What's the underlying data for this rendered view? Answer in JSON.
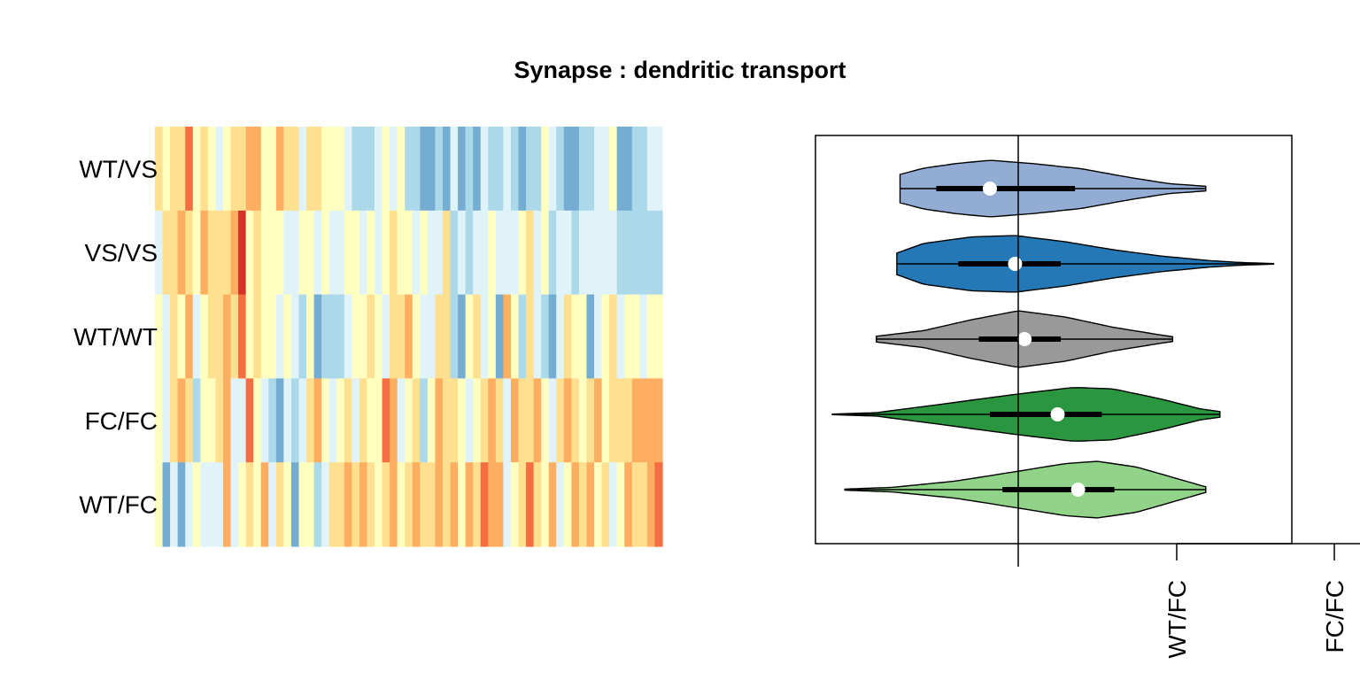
{
  "chart_data": [
    {
      "type": "heatmap",
      "title": "Synapse : dendritic transport",
      "rows": [
        "WT/VS",
        "VS/VS",
        "WT/WT",
        "FC/FC",
        "WT/FC"
      ],
      "n_columns": 67,
      "palette": [
        "#4575b4",
        "#74add1",
        "#abd9e9",
        "#e0f3f8",
        "#ffffbf",
        "#fee090",
        "#fdae61",
        "#f46d43",
        "#d73027"
      ],
      "values": [
        [
          5,
          4,
          5,
          5,
          7,
          4,
          5,
          4,
          3,
          4,
          5,
          5,
          6,
          6,
          4,
          4,
          6,
          5,
          5,
          3,
          5,
          5,
          4,
          4,
          4,
          3,
          2,
          2,
          2,
          3,
          4,
          3,
          4,
          2,
          2,
          1,
          1,
          2,
          1,
          3,
          1,
          2,
          1,
          3,
          2,
          2,
          3,
          2,
          1,
          2,
          2,
          4,
          3,
          2,
          1,
          1,
          2,
          2,
          3,
          3,
          4,
          1,
          1,
          2,
          2,
          3,
          3
        ],
        [
          3,
          5,
          5,
          6,
          5,
          4,
          6,
          5,
          5,
          5,
          6,
          8,
          4,
          5,
          4,
          4,
          4,
          3,
          3,
          4,
          4,
          3,
          4,
          3,
          3,
          4,
          4,
          3,
          4,
          3,
          4,
          5,
          4,
          4,
          3,
          4,
          3,
          3,
          5,
          2,
          3,
          2,
          3,
          3,
          4,
          3,
          3,
          3,
          4,
          5,
          3,
          4,
          2,
          3,
          3,
          2,
          3,
          3,
          3,
          3,
          3,
          2,
          2,
          2,
          2,
          2,
          2
        ],
        [
          4,
          3,
          5,
          4,
          6,
          3,
          4,
          5,
          5,
          6,
          5,
          7,
          4,
          5,
          4,
          4,
          3,
          4,
          3,
          2,
          4,
          1,
          2,
          2,
          2,
          3,
          4,
          4,
          5,
          4,
          3,
          5,
          5,
          6,
          4,
          3,
          3,
          5,
          5,
          2,
          1,
          4,
          5,
          3,
          4,
          1,
          6,
          4,
          2,
          5,
          3,
          2,
          1,
          3,
          5,
          4,
          4,
          1,
          3,
          4,
          5,
          3,
          4,
          4,
          3,
          4,
          4
        ],
        [
          4,
          3,
          5,
          6,
          5,
          2,
          4,
          4,
          5,
          6,
          3,
          3,
          7,
          4,
          3,
          2,
          1,
          3,
          2,
          3,
          5,
          6,
          4,
          3,
          4,
          5,
          3,
          5,
          4,
          4,
          7,
          6,
          3,
          4,
          5,
          2,
          4,
          6,
          5,
          5,
          4,
          3,
          4,
          5,
          6,
          5,
          3,
          6,
          5,
          5,
          6,
          4,
          3,
          5,
          6,
          5,
          4,
          5,
          6,
          4,
          5,
          5,
          5,
          6,
          6,
          6,
          6
        ],
        [
          4,
          1,
          3,
          1,
          3,
          4,
          3,
          3,
          3,
          6,
          3,
          4,
          5,
          4,
          6,
          3,
          5,
          4,
          1,
          4,
          4,
          2,
          3,
          5,
          5,
          6,
          5,
          6,
          5,
          4,
          5,
          6,
          4,
          5,
          6,
          5,
          5,
          6,
          5,
          6,
          4,
          6,
          5,
          7,
          6,
          6,
          3,
          4,
          5,
          7,
          5,
          4,
          6,
          3,
          4,
          6,
          5,
          6,
          4,
          5,
          3,
          4,
          6,
          5,
          5,
          6,
          7
        ]
      ]
    },
    {
      "type": "violin",
      "categories": [
        "WT/VS",
        "VS/VS",
        "WT/WT",
        "FC/FC",
        "WT/FC"
      ],
      "x_tick_labels": [
        "WT/FC",
        "FC/FC"
      ],
      "colors": [
        "#92acd4",
        "#2378b5",
        "#999999",
        "#2a9640",
        "#92d38a"
      ],
      "violins": [
        {
          "name": "WT/VS",
          "color": "#92acd4",
          "min": -0.75,
          "q1": -0.52,
          "median": -0.18,
          "q3": 0.36,
          "max": 1.19,
          "profile": [
            [
              -0.75,
              0.5
            ],
            [
              -0.6,
              0.72
            ],
            [
              -0.4,
              0.88
            ],
            [
              -0.18,
              1.0
            ],
            [
              0.1,
              0.88
            ],
            [
              0.4,
              0.7
            ],
            [
              0.7,
              0.4
            ],
            [
              0.95,
              0.18
            ],
            [
              1.19,
              0.08
            ]
          ]
        },
        {
          "name": "VS/VS",
          "color": "#2378b5",
          "min": -0.77,
          "q1": -0.38,
          "median": -0.02,
          "q3": 0.27,
          "max": 1.62,
          "profile": [
            [
              -0.77,
              0.38
            ],
            [
              -0.6,
              0.72
            ],
            [
              -0.3,
              0.95
            ],
            [
              -0.02,
              1.0
            ],
            [
              0.3,
              0.78
            ],
            [
              0.6,
              0.5
            ],
            [
              0.9,
              0.28
            ],
            [
              1.2,
              0.12
            ],
            [
              1.4,
              0.05
            ],
            [
              1.62,
              0.01
            ]
          ]
        },
        {
          "name": "WT/WT",
          "color": "#999999",
          "min": -0.9,
          "q1": -0.25,
          "median": 0.04,
          "q3": 0.27,
          "max": 0.98,
          "profile": [
            [
              -0.9,
              0.1
            ],
            [
              -0.6,
              0.3
            ],
            [
              -0.3,
              0.68
            ],
            [
              0.0,
              1.0
            ],
            [
              0.3,
              0.78
            ],
            [
              0.6,
              0.42
            ],
            [
              0.8,
              0.24
            ],
            [
              0.98,
              0.08
            ]
          ]
        },
        {
          "name": "FC/FC",
          "color": "#2a9640",
          "min": -1.18,
          "q1": -0.18,
          "median": 0.25,
          "q3": 0.53,
          "max": 1.28,
          "profile": [
            [
              -1.18,
              0.01
            ],
            [
              -0.9,
              0.06
            ],
            [
              -0.5,
              0.35
            ],
            [
              0.0,
              0.72
            ],
            [
              0.35,
              0.95
            ],
            [
              0.6,
              0.9
            ],
            [
              0.9,
              0.55
            ],
            [
              1.15,
              0.2
            ],
            [
              1.28,
              0.1
            ]
          ]
        },
        {
          "name": "WT/FC",
          "color": "#92d38a",
          "min": -1.1,
          "q1": -0.1,
          "median": 0.38,
          "q3": 0.61,
          "max": 1.19,
          "profile": [
            [
              -1.1,
              0.02
            ],
            [
              -0.8,
              0.08
            ],
            [
              -0.4,
              0.3
            ],
            [
              0.0,
              0.65
            ],
            [
              0.3,
              0.92
            ],
            [
              0.5,
              1.0
            ],
            [
              0.75,
              0.8
            ],
            [
              1.0,
              0.4
            ],
            [
              1.19,
              0.1
            ]
          ]
        }
      ]
    }
  ]
}
